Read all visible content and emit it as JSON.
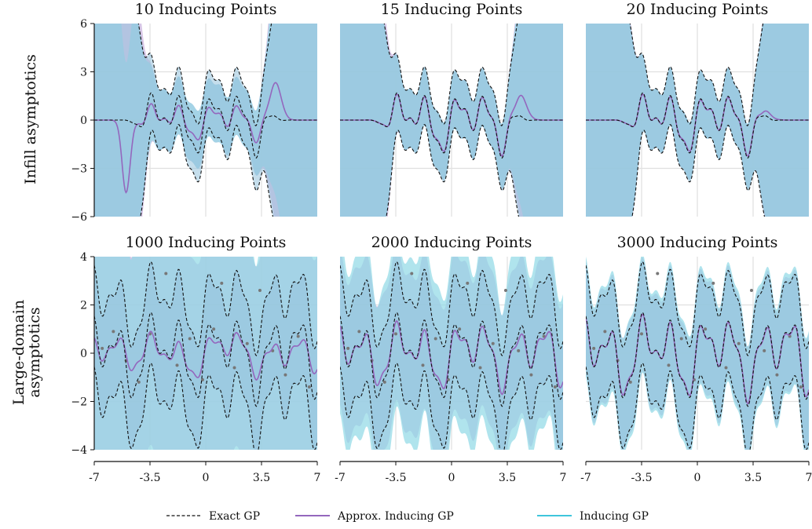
{
  "colors": {
    "exact": "#111111",
    "approx": "#9467bd",
    "approx_band": "#c9b3dd",
    "inducing": "#3fc5dc",
    "inducing_band": "#8fd9e6",
    "overlap_band": "#96c2dc",
    "grid": "#e0e0e0",
    "data_points": "#777777"
  },
  "legend": {
    "exact": "Exact GP",
    "approx": "Approx. Inducing GP",
    "inducing": "Inducing GP"
  },
  "rows": [
    {
      "label_line1": "Infill asymptotics",
      "label_line2": ""
    },
    {
      "label_line1": "Large-domain",
      "label_line2": "asymptotics"
    }
  ],
  "x_ticks": [
    "-7",
    "-3.5",
    "0",
    "3.5",
    "7"
  ],
  "y_ticks_top": [
    "6",
    "3",
    "0",
    "−3",
    "−6"
  ],
  "y_ticks_bottom": [
    "4",
    "2",
    "0",
    "−2",
    "−4"
  ],
  "chart_data": [
    {
      "type": "line",
      "title": "10 Inducing Points",
      "row": 0,
      "col": 0,
      "num_inducing": 10,
      "xlim": [
        -7,
        7
      ],
      "ylim": [
        -6,
        6
      ],
      "grid": true,
      "series": [
        {
          "name": "Exact GP"
        },
        {
          "name": "Approx. Inducing GP"
        },
        {
          "name": "Inducing GP"
        }
      ]
    },
    {
      "type": "line",
      "title": "15 Inducing Points",
      "row": 0,
      "col": 1,
      "num_inducing": 15,
      "xlim": [
        -7,
        7
      ],
      "ylim": [
        -6,
        6
      ],
      "grid": true,
      "series": [
        {
          "name": "Exact GP"
        },
        {
          "name": "Approx. Inducing GP"
        },
        {
          "name": "Inducing GP"
        }
      ]
    },
    {
      "type": "line",
      "title": "20 Inducing Points",
      "row": 0,
      "col": 2,
      "num_inducing": 20,
      "xlim": [
        -7,
        7
      ],
      "ylim": [
        -6,
        6
      ],
      "grid": true,
      "series": [
        {
          "name": "Exact GP"
        },
        {
          "name": "Approx. Inducing GP"
        },
        {
          "name": "Inducing GP"
        }
      ]
    },
    {
      "type": "line",
      "title": "1000 Inducing Points",
      "row": 1,
      "col": 0,
      "num_inducing": 1000,
      "xlim": [
        -7,
        7
      ],
      "ylim": [
        -4,
        4
      ],
      "grid": true,
      "series": [
        {
          "name": "Exact GP"
        },
        {
          "name": "Approx. Inducing GP"
        },
        {
          "name": "Inducing GP"
        }
      ],
      "data_points": {
        "x": [
          -6.5,
          -5.8,
          -5.0,
          -4.2,
          -3.5,
          -2.5,
          -1.8,
          -1.0,
          -0.2,
          0.5,
          1.0,
          1.8,
          2.6,
          3.4,
          4.2,
          5.0,
          5.8,
          6.5
        ],
        "y": [
          0.2,
          0.9,
          -0.3,
          -1.2,
          0.8,
          3.3,
          -0.5,
          0.6,
          -1.1,
          1.0,
          2.9,
          -0.6,
          0.4,
          2.6,
          0.1,
          -0.9,
          0.7,
          -1.4
        ]
      }
    },
    {
      "type": "line",
      "title": "2000 Inducing Points",
      "row": 1,
      "col": 1,
      "num_inducing": 2000,
      "xlim": [
        -7,
        7
      ],
      "ylim": [
        -4,
        4
      ],
      "grid": true,
      "series": [
        {
          "name": "Exact GP"
        },
        {
          "name": "Approx. Inducing GP"
        },
        {
          "name": "Inducing GP"
        }
      ],
      "data_points": {
        "x": [
          -6.5,
          -5.8,
          -5.0,
          -4.2,
          -3.5,
          -2.5,
          -1.8,
          -1.0,
          -0.2,
          0.5,
          1.0,
          1.8,
          2.6,
          3.4,
          4.2,
          5.0,
          5.8,
          6.5
        ],
        "y": [
          0.2,
          0.9,
          -0.3,
          -1.2,
          0.8,
          3.3,
          -0.5,
          0.6,
          -1.1,
          1.0,
          2.9,
          -0.6,
          0.4,
          2.6,
          0.1,
          -0.9,
          0.7,
          -1.4
        ]
      }
    },
    {
      "type": "line",
      "title": "3000 Inducing Points",
      "row": 1,
      "col": 2,
      "num_inducing": 3000,
      "xlim": [
        -7,
        7
      ],
      "ylim": [
        -4,
        4
      ],
      "grid": true,
      "series": [
        {
          "name": "Exact GP"
        },
        {
          "name": "Approx. Inducing GP"
        },
        {
          "name": "Inducing GP"
        }
      ],
      "data_points": {
        "x": [
          -6.5,
          -5.8,
          -5.0,
          -4.2,
          -3.5,
          -2.5,
          -1.8,
          -1.0,
          -0.2,
          0.5,
          1.0,
          1.8,
          2.6,
          3.4,
          4.2,
          5.0,
          5.8,
          6.5
        ],
        "y": [
          0.2,
          0.9,
          -0.3,
          -1.2,
          0.8,
          3.3,
          -0.5,
          0.6,
          -1.1,
          1.0,
          2.9,
          -0.6,
          0.4,
          2.6,
          0.1,
          -0.9,
          0.7,
          -1.4
        ]
      }
    }
  ]
}
